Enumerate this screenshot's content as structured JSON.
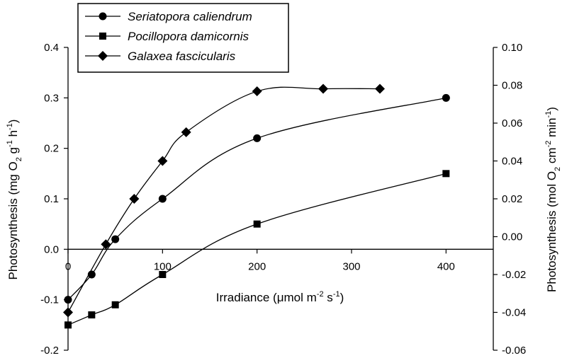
{
  "chart_data": {
    "type": "line",
    "xlabel": {
      "main": "Irradiance (",
      "mu": "μ",
      "unit": "mol m",
      "exp1": "-2",
      "mid": " s",
      "exp2": "-1",
      "end": ")"
    },
    "ylabel_left": {
      "a": "Photosynthesis (mg O",
      "sub": "2",
      "b": " g",
      "exp1": "-1",
      "c": " h",
      "exp2": "-1",
      "d": ")"
    },
    "ylabel_right": {
      "a": "Photosynthesis (mol O",
      "sub": "2",
      "b": " cm",
      "exp1": "-2",
      "c": " min",
      "exp2": "-1",
      "d": ")"
    },
    "x_ticks": [
      "0",
      "100",
      "200",
      "300",
      "400"
    ],
    "y_left_ticks": [
      "-0.2",
      "-0.1",
      "0.0",
      "0.1",
      "0.2",
      "0.3",
      "0.4"
    ],
    "y_right_ticks": [
      "-0.06",
      "-0.04",
      "-0.02",
      "0.00",
      "0.02",
      "0.04",
      "0.06",
      "0.08",
      "0.10"
    ],
    "xlim": [
      0,
      450
    ],
    "ylim_left": [
      -0.2,
      0.4
    ],
    "ylim_right": [
      -0.06,
      0.1
    ],
    "grid": false,
    "legend_position": "top-left",
    "series": [
      {
        "name": "Seriatopora caliendrum",
        "marker": "circle",
        "axis": "left",
        "x": [
          0,
          25,
          50,
          100,
          200,
          400
        ],
        "y": [
          -0.1,
          -0.05,
          0.02,
          0.1,
          0.22,
          0.3
        ]
      },
      {
        "name": "Pocillopora damicornis",
        "marker": "square",
        "axis": "left",
        "x": [
          0,
          25,
          50,
          100,
          200,
          400
        ],
        "y": [
          -0.15,
          -0.13,
          -0.11,
          -0.05,
          0.05,
          0.15
        ]
      },
      {
        "name": "Galaxea fascicularis",
        "marker": "diamond",
        "axis": "left",
        "x": [
          0,
          40,
          70,
          100,
          125,
          200,
          270,
          330
        ],
        "y": [
          -0.125,
          0.01,
          0.1,
          0.175,
          0.232,
          0.313,
          0.318,
          0.318
        ]
      }
    ]
  }
}
